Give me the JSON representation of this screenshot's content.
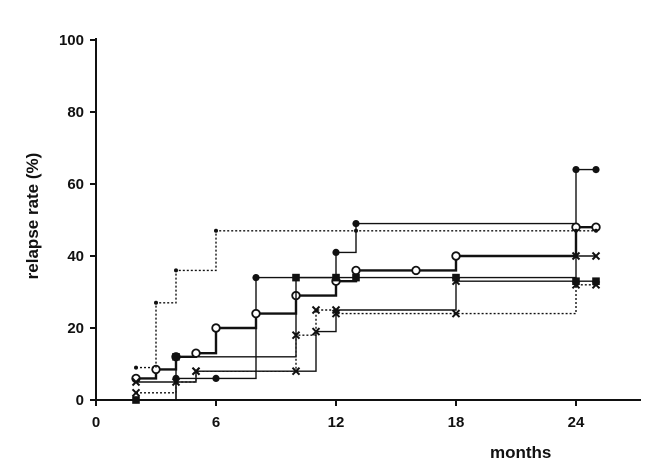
{
  "chart_data": {
    "type": "line",
    "step": true,
    "title": "",
    "xlabel": "months",
    "ylabel": "relapse rate (%)",
    "xlim": [
      0,
      27
    ],
    "ylim": [
      0,
      100
    ],
    "x_ticks": [
      "0",
      "6",
      "12",
      "18",
      "24"
    ],
    "y_ticks": [
      "0",
      "20",
      "40",
      "60",
      "80",
      "100"
    ],
    "grid": false,
    "legend": "none",
    "series": [
      {
        "marker": "filled-circle",
        "line": "solid",
        "color": "#111111",
        "x": [
          2,
          4,
          6,
          8,
          10,
          12,
          13,
          24,
          25
        ],
        "y": [
          0,
          6,
          6,
          34,
          34,
          41,
          49,
          64,
          64
        ]
      },
      {
        "marker": "open-circle",
        "line": "thick-solid",
        "color": "#111111",
        "x": [
          2,
          3,
          4,
          5,
          6,
          8,
          10,
          12,
          13,
          16,
          18,
          24,
          25
        ],
        "y": [
          6,
          8.5,
          12,
          13,
          20,
          24,
          29,
          33,
          36,
          36,
          40,
          48,
          48
        ]
      },
      {
        "marker": "filled-square",
        "line": "solid",
        "color": "#111111",
        "x": [
          2,
          4,
          10,
          12,
          13,
          18,
          24,
          25
        ],
        "y": [
          0,
          12,
          34,
          34,
          34,
          34,
          33,
          33
        ]
      },
      {
        "marker": "cross",
        "line": "dotted",
        "color": "#111111",
        "x": [
          2,
          4,
          5,
          10,
          11,
          12,
          18,
          24,
          25
        ],
        "y": [
          2,
          5,
          8,
          18,
          25,
          24,
          24,
          32,
          32
        ]
      },
      {
        "marker": "small-dot",
        "line": "dotted",
        "color": "#111111",
        "x": [
          2,
          3,
          4,
          6,
          13,
          24,
          25
        ],
        "y": [
          9,
          27,
          36,
          47,
          47,
          47,
          47
        ]
      },
      {
        "marker": "cross",
        "line": "solid",
        "color": "#111111",
        "x": [
          2,
          5,
          10,
          11,
          12,
          18,
          24,
          25
        ],
        "y": [
          5,
          8,
          8,
          19,
          25,
          33,
          40,
          40
        ]
      }
    ]
  }
}
